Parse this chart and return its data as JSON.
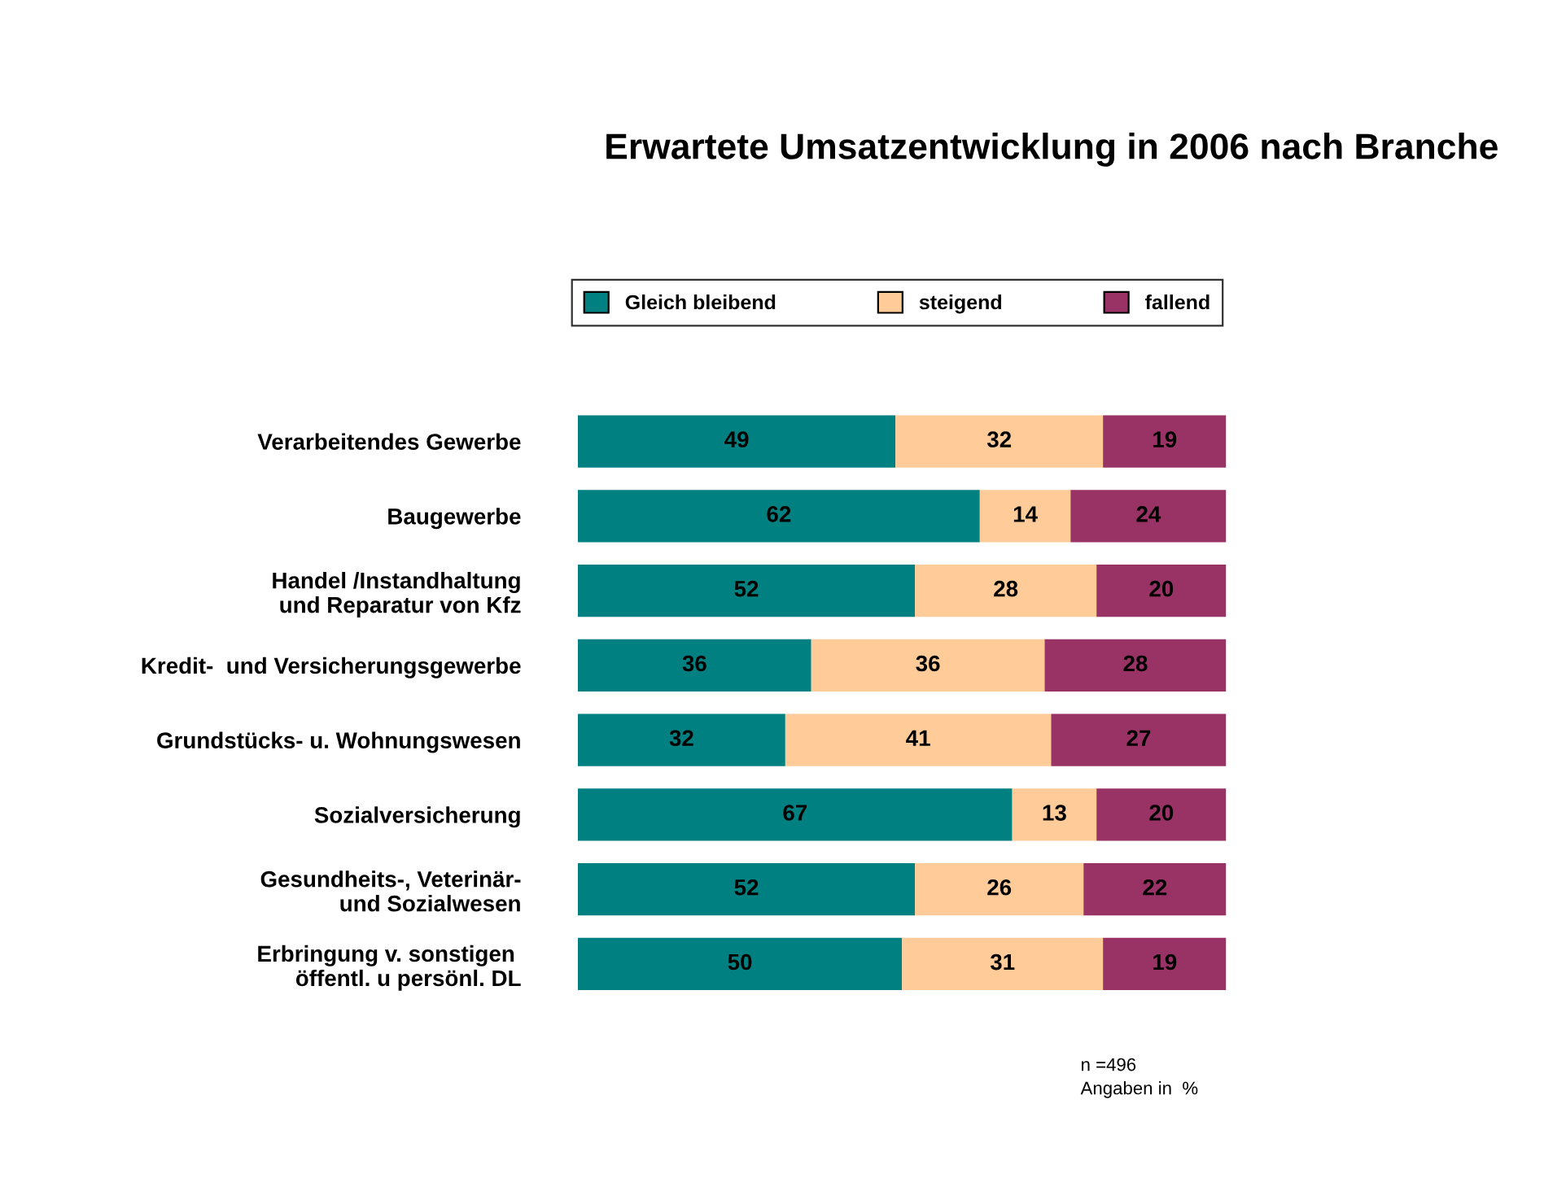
{
  "chart_data": {
    "type": "bar",
    "orientation": "horizontal",
    "stacked": true,
    "data_labels": true,
    "legend": "top",
    "grid": false,
    "title": "Erwartete Umsatzentwicklung in 2006 nach Branche",
    "categories": [
      "Verarbeitendes Gewerbe",
      "Baugewerbe",
      "Handel /Instandhaltung\nund Reparatur von Kfz",
      "Kredit-  und Versicherungsgewerbe",
      "Grundstücks- u. Wohnungswesen",
      "Sozialversicherung",
      "Gesundheits-, Veterinär-\nund Sozialwesen",
      "Erbringung v. sonstigen \nöffentl. u persönl. DL"
    ],
    "series": [
      {
        "name": "Gleich bleibend",
        "color": "#008080",
        "values": [
          49,
          62,
          52,
          36,
          32,
          67,
          52,
          50
        ]
      },
      {
        "name": "steigend",
        "color": "#ffcc99",
        "values": [
          32,
          14,
          28,
          36,
          41,
          13,
          26,
          31
        ]
      },
      {
        "name": "fallend",
        "color": "#993366",
        "values": [
          19,
          24,
          20,
          28,
          27,
          20,
          22,
          19
        ]
      }
    ],
    "annotations": [
      "n =496",
      "Angaben in  %"
    ]
  }
}
